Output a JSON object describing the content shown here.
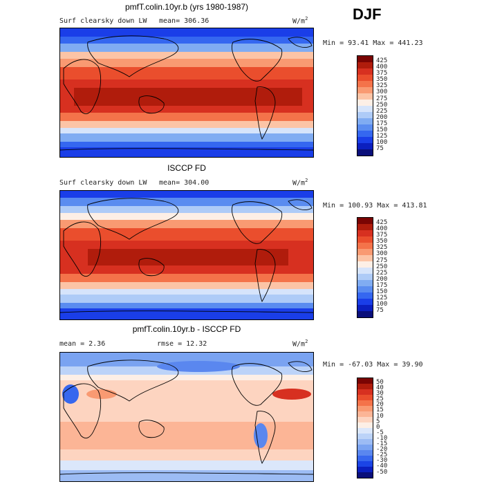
{
  "season": "DJF",
  "units_label": "W/m",
  "units_sup": "2",
  "panels": [
    {
      "title": "pmfT.colin.10yr.b (yrs 1980-1987)",
      "left_label": "Surf clearsky down LW",
      "stat_label": "mean=",
      "stat_value": "306.36",
      "minmax": "Min =  93.41 Max = 441.23",
      "colorbar": [
        "425",
        "400",
        "375",
        "350",
        "325",
        "300",
        "275",
        "250",
        "225",
        "200",
        "175",
        "150",
        "125",
        "100",
        "75"
      ]
    },
    {
      "title": "ISCCP FD",
      "left_label": "Surf clearsky down LW",
      "stat_label": "mean=",
      "stat_value": "304.00",
      "minmax": "Min = 100.93 Max = 413.81",
      "colorbar": [
        "425",
        "400",
        "375",
        "350",
        "325",
        "300",
        "275",
        "250",
        "225",
        "200",
        "175",
        "150",
        "125",
        "100",
        "75"
      ]
    },
    {
      "title": "pmfT.colin.10yr.b - ISCCP FD",
      "left_label": "mean =    2.36",
      "stat_label": "rmse =",
      "stat_value": "12.32",
      "minmax": "Min = -67.03 Max =  39.90",
      "colorbar": [
        "50",
        "40",
        "30",
        "25",
        "20",
        "15",
        "10",
        "5",
        "0",
        "-5",
        "-10",
        "-15",
        "-20",
        "-25",
        "-30",
        "-40",
        "-50"
      ]
    }
  ],
  "colors": {
    "abs_scale": [
      "#7a0403",
      "#b01c0c",
      "#d73020",
      "#ea4e2d",
      "#f4734a",
      "#f99a72",
      "#fcc4a6",
      "#fdefe6",
      "#d6e4fb",
      "#aecbf7",
      "#80acf2",
      "#5a8cf0",
      "#3567f0",
      "#1a3ee8",
      "#0b1fbf",
      "#0a0f7a"
    ],
    "diff_scale": [
      "#7a0403",
      "#b01c0c",
      "#d73020",
      "#ea4e2d",
      "#f4734a",
      "#f99a72",
      "#fcb596",
      "#fdd4c0",
      "#fdefe6",
      "#dbe7fb",
      "#bcd3f8",
      "#9cbcf4",
      "#7aa3f1",
      "#5a87ef",
      "#3767ee",
      "#1b44e6",
      "#0b1fbf",
      "#0a0f7a"
    ]
  }
}
